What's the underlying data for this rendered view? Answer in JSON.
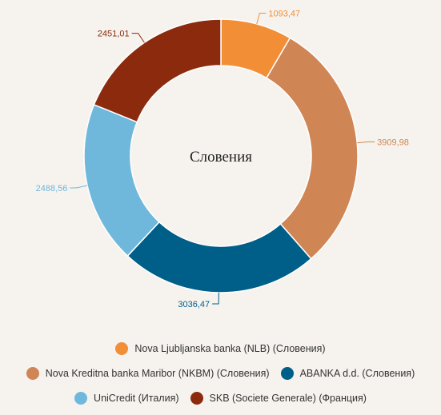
{
  "chart_data": {
    "type": "pie",
    "donut": true,
    "center_label": "Словения",
    "slices": [
      {
        "name": "Nova Ljubljanska banka (NLB) (Словения)",
        "value": 1093.47,
        "label": "1093,47",
        "color": "#f28e36"
      },
      {
        "name": "Nova Kreditna banka Maribor (NKBM) (Словения)",
        "value": 3909.98,
        "label": "3909,98",
        "color": "#d08555"
      },
      {
        "name": "ABANKA d.d. (Словения)",
        "value": 3036.47,
        "label": "3036,47",
        "color": "#005f89"
      },
      {
        "name": "UniCredit (Италия)",
        "value": 2488.56,
        "label": "2488,56",
        "color": "#6fb8dc"
      },
      {
        "name": "SKB (Societe Generale) (Франция)",
        "value": 2451.01,
        "label": "2451,01",
        "color": "#8c2a0e"
      }
    ],
    "legend_rows": [
      [
        0
      ],
      [
        1,
        2
      ],
      [
        3,
        4
      ]
    ],
    "legend_position": "bottom",
    "label_colors": [
      "#f28e36",
      "#d08555",
      "#005f89",
      "#6fb8dc",
      "#8c2a0e"
    ]
  }
}
